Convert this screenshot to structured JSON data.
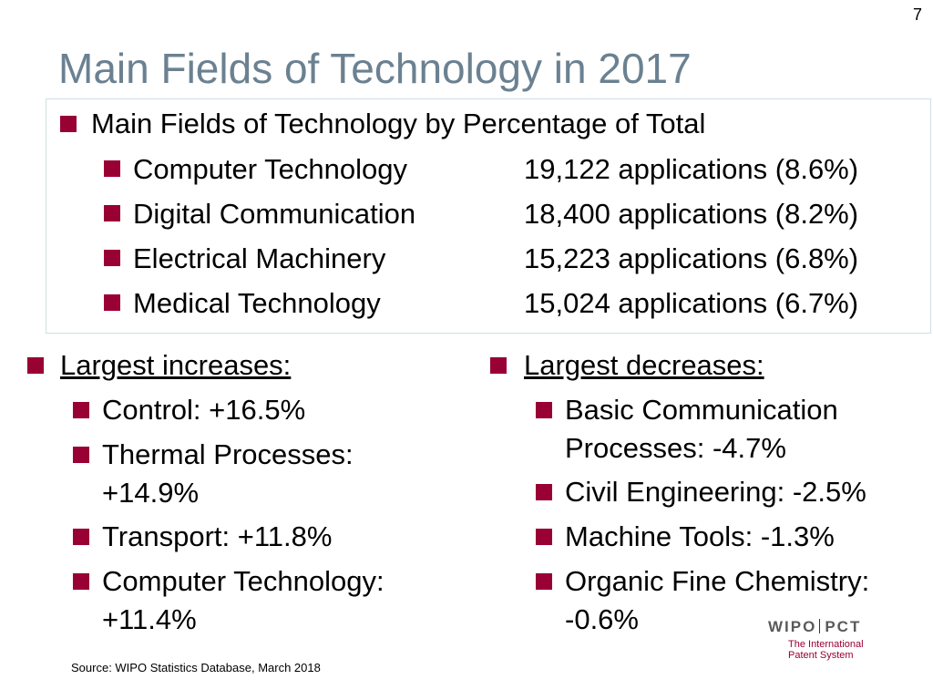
{
  "page_number": "7",
  "title": "Main Fields of Technology in 2017",
  "accent_color": "#990033",
  "title_color": "#6b8191",
  "main_box": {
    "heading": "Main Fields of Technology by Percentage of Total",
    "rows": [
      {
        "field": "Computer Technology",
        "value": "19,122 applications (8.6%)"
      },
      {
        "field": "Digital Communication",
        "value": "18,400 applications (8.2%)"
      },
      {
        "field": "Electrical Machinery",
        "value": "15,223 applications (6.8%)"
      },
      {
        "field": "Medical Technology",
        "value": "15,024 applications (6.7%)"
      }
    ]
  },
  "increases": {
    "heading": "Largest increases:",
    "items": [
      {
        "line1": "Control: +16.5%"
      },
      {
        "line1": "Thermal Processes:",
        "line2": "+14.9%"
      },
      {
        "line1": "Transport: +11.8%"
      },
      {
        "line1": "Computer Technology:",
        "line2": "+11.4%"
      }
    ]
  },
  "decreases": {
    "heading": "Largest decreases:",
    "items": [
      {
        "line1": "Basic Communication",
        "line2": "Processes: -4.7%"
      },
      {
        "line1": "Civil Engineering: -2.5%"
      },
      {
        "line1": "Machine Tools: -1.3%"
      },
      {
        "line1": "Organic Fine Chemistry:",
        "line2": "-0.6%"
      }
    ]
  },
  "source": "Source:  WIPO Statistics Database, March 2018",
  "logo": {
    "left": "WIPO",
    "right": "PCT",
    "sub1": "The International",
    "sub2": "Patent System"
  }
}
